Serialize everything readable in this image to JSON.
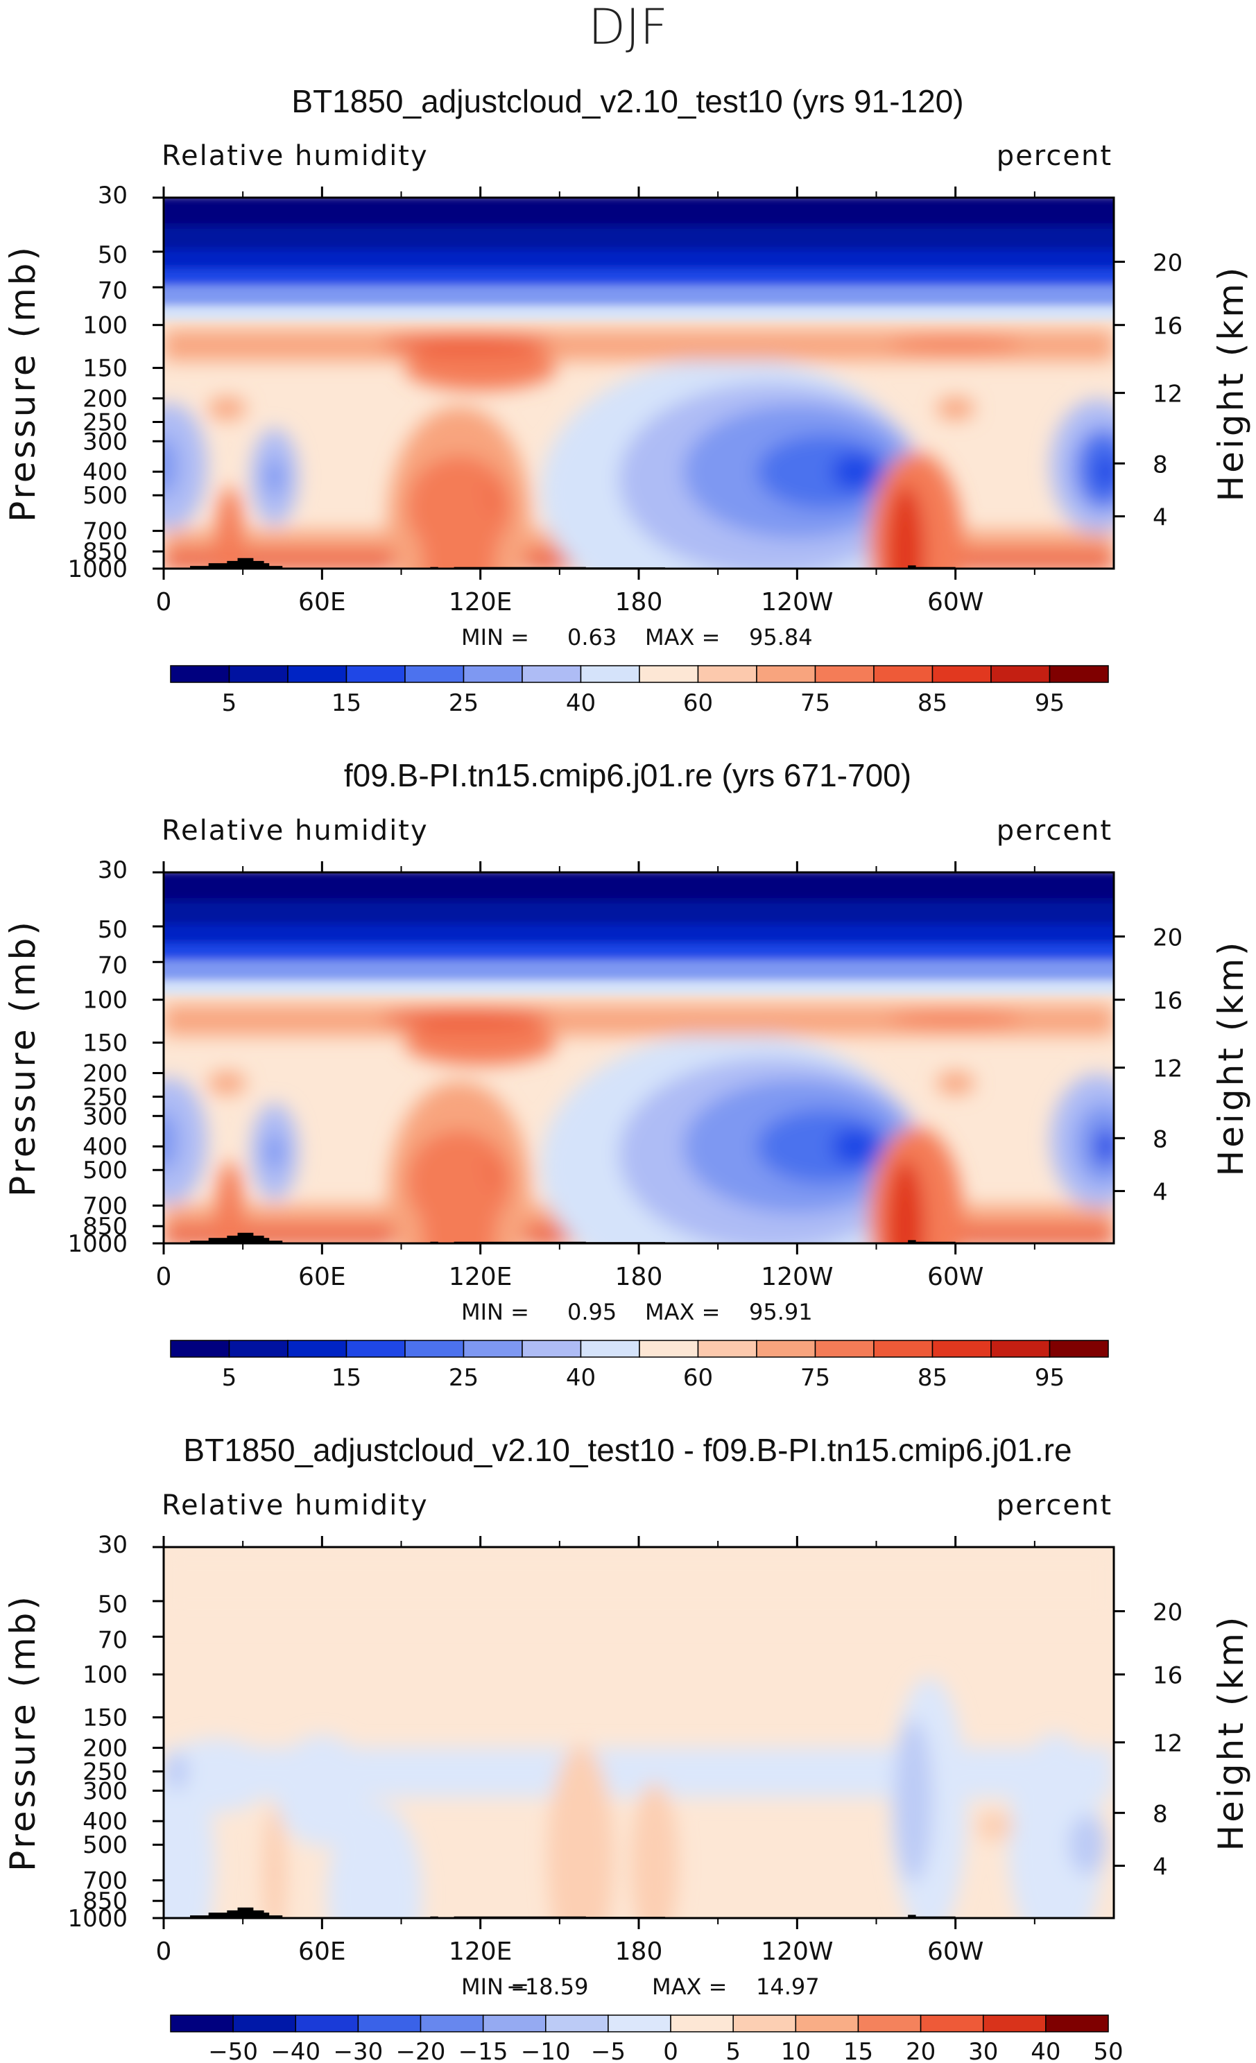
{
  "page_title": "DJF",
  "colors": {
    "rh_levels": [
      "#00007f",
      "#0012a0",
      "#0024c4",
      "#1f47e6",
      "#4c72ee",
      "#7e98f2",
      "#aebcf5",
      "#d5e3fa",
      "#fde7d5",
      "#fcc9ad",
      "#f8a47e",
      "#f47c57",
      "#ee5a38",
      "#e1381f",
      "#c41f12",
      "#7f0000"
    ],
    "land": "#000000"
  },
  "chart_data": [
    {
      "type": "heatmap",
      "title": "BT1850_adjustcloud_v2.10_test10 (yrs 91-120)",
      "variable_label": "Relative humidity",
      "units_label": "percent",
      "ylabel": "Pressure (mb)",
      "y2label": "Height (km)",
      "x_ticks": [
        "0",
        "60E",
        "120E",
        "180",
        "120W",
        "60W"
      ],
      "y_ticks": [
        "30",
        "50",
        "70",
        "100",
        "150",
        "200",
        "250",
        "300",
        "400",
        "500",
        "700",
        "850",
        "1000"
      ],
      "y2_ticks": [
        "20",
        "16",
        "12",
        "8",
        "4"
      ],
      "stats": {
        "min_label": "MIN =",
        "min": "0.63",
        "max_label": "MAX =",
        "max": "95.84"
      },
      "colorbar_labels": [
        "5",
        "15",
        "25",
        "40",
        "60",
        "75",
        "85",
        "95"
      ],
      "cmap": "rh"
    },
    {
      "type": "heatmap",
      "title": "f09.B-PI.tn15.cmip6.j01.re (yrs 671-700)",
      "variable_label": "Relative humidity",
      "units_label": "percent",
      "ylabel": "Pressure (mb)",
      "y2label": "Height (km)",
      "x_ticks": [
        "0",
        "60E",
        "120E",
        "180",
        "120W",
        "60W"
      ],
      "y_ticks": [
        "30",
        "50",
        "70",
        "100",
        "150",
        "200",
        "250",
        "300",
        "400",
        "500",
        "700",
        "850",
        "1000"
      ],
      "y2_ticks": [
        "20",
        "16",
        "12",
        "8",
        "4"
      ],
      "stats": {
        "min_label": "MIN =",
        "min": "0.95",
        "max_label": "MAX =",
        "max": "95.91"
      },
      "colorbar_labels": [
        "5",
        "15",
        "25",
        "40",
        "60",
        "75",
        "85",
        "95"
      ],
      "cmap": "rh"
    },
    {
      "type": "heatmap",
      "title": "BT1850_adjustcloud_v2.10_test10 - f09.B-PI.tn15.cmip6.j01.re",
      "variable_label": "Relative humidity",
      "units_label": "percent",
      "ylabel": "Pressure (mb)",
      "y2label": "Height (km)",
      "x_ticks": [
        "0",
        "60E",
        "120E",
        "180",
        "120W",
        "60W"
      ],
      "y_ticks": [
        "30",
        "50",
        "70",
        "100",
        "150",
        "200",
        "250",
        "300",
        "400",
        "500",
        "700",
        "850",
        "1000"
      ],
      "y2_ticks": [
        "20",
        "16",
        "12",
        "8",
        "4"
      ],
      "stats": {
        "min_label": "MIN =",
        "min": "−18.59",
        "max_label": "MAX =",
        "max": "14.97"
      },
      "colorbar_labels": [
        "−50",
        "−40",
        "−30",
        "−20",
        "−15",
        "−10",
        "−5",
        "0",
        "5",
        "10",
        "15",
        "20",
        "30",
        "40",
        "50"
      ],
      "cmap": "diff"
    }
  ]
}
